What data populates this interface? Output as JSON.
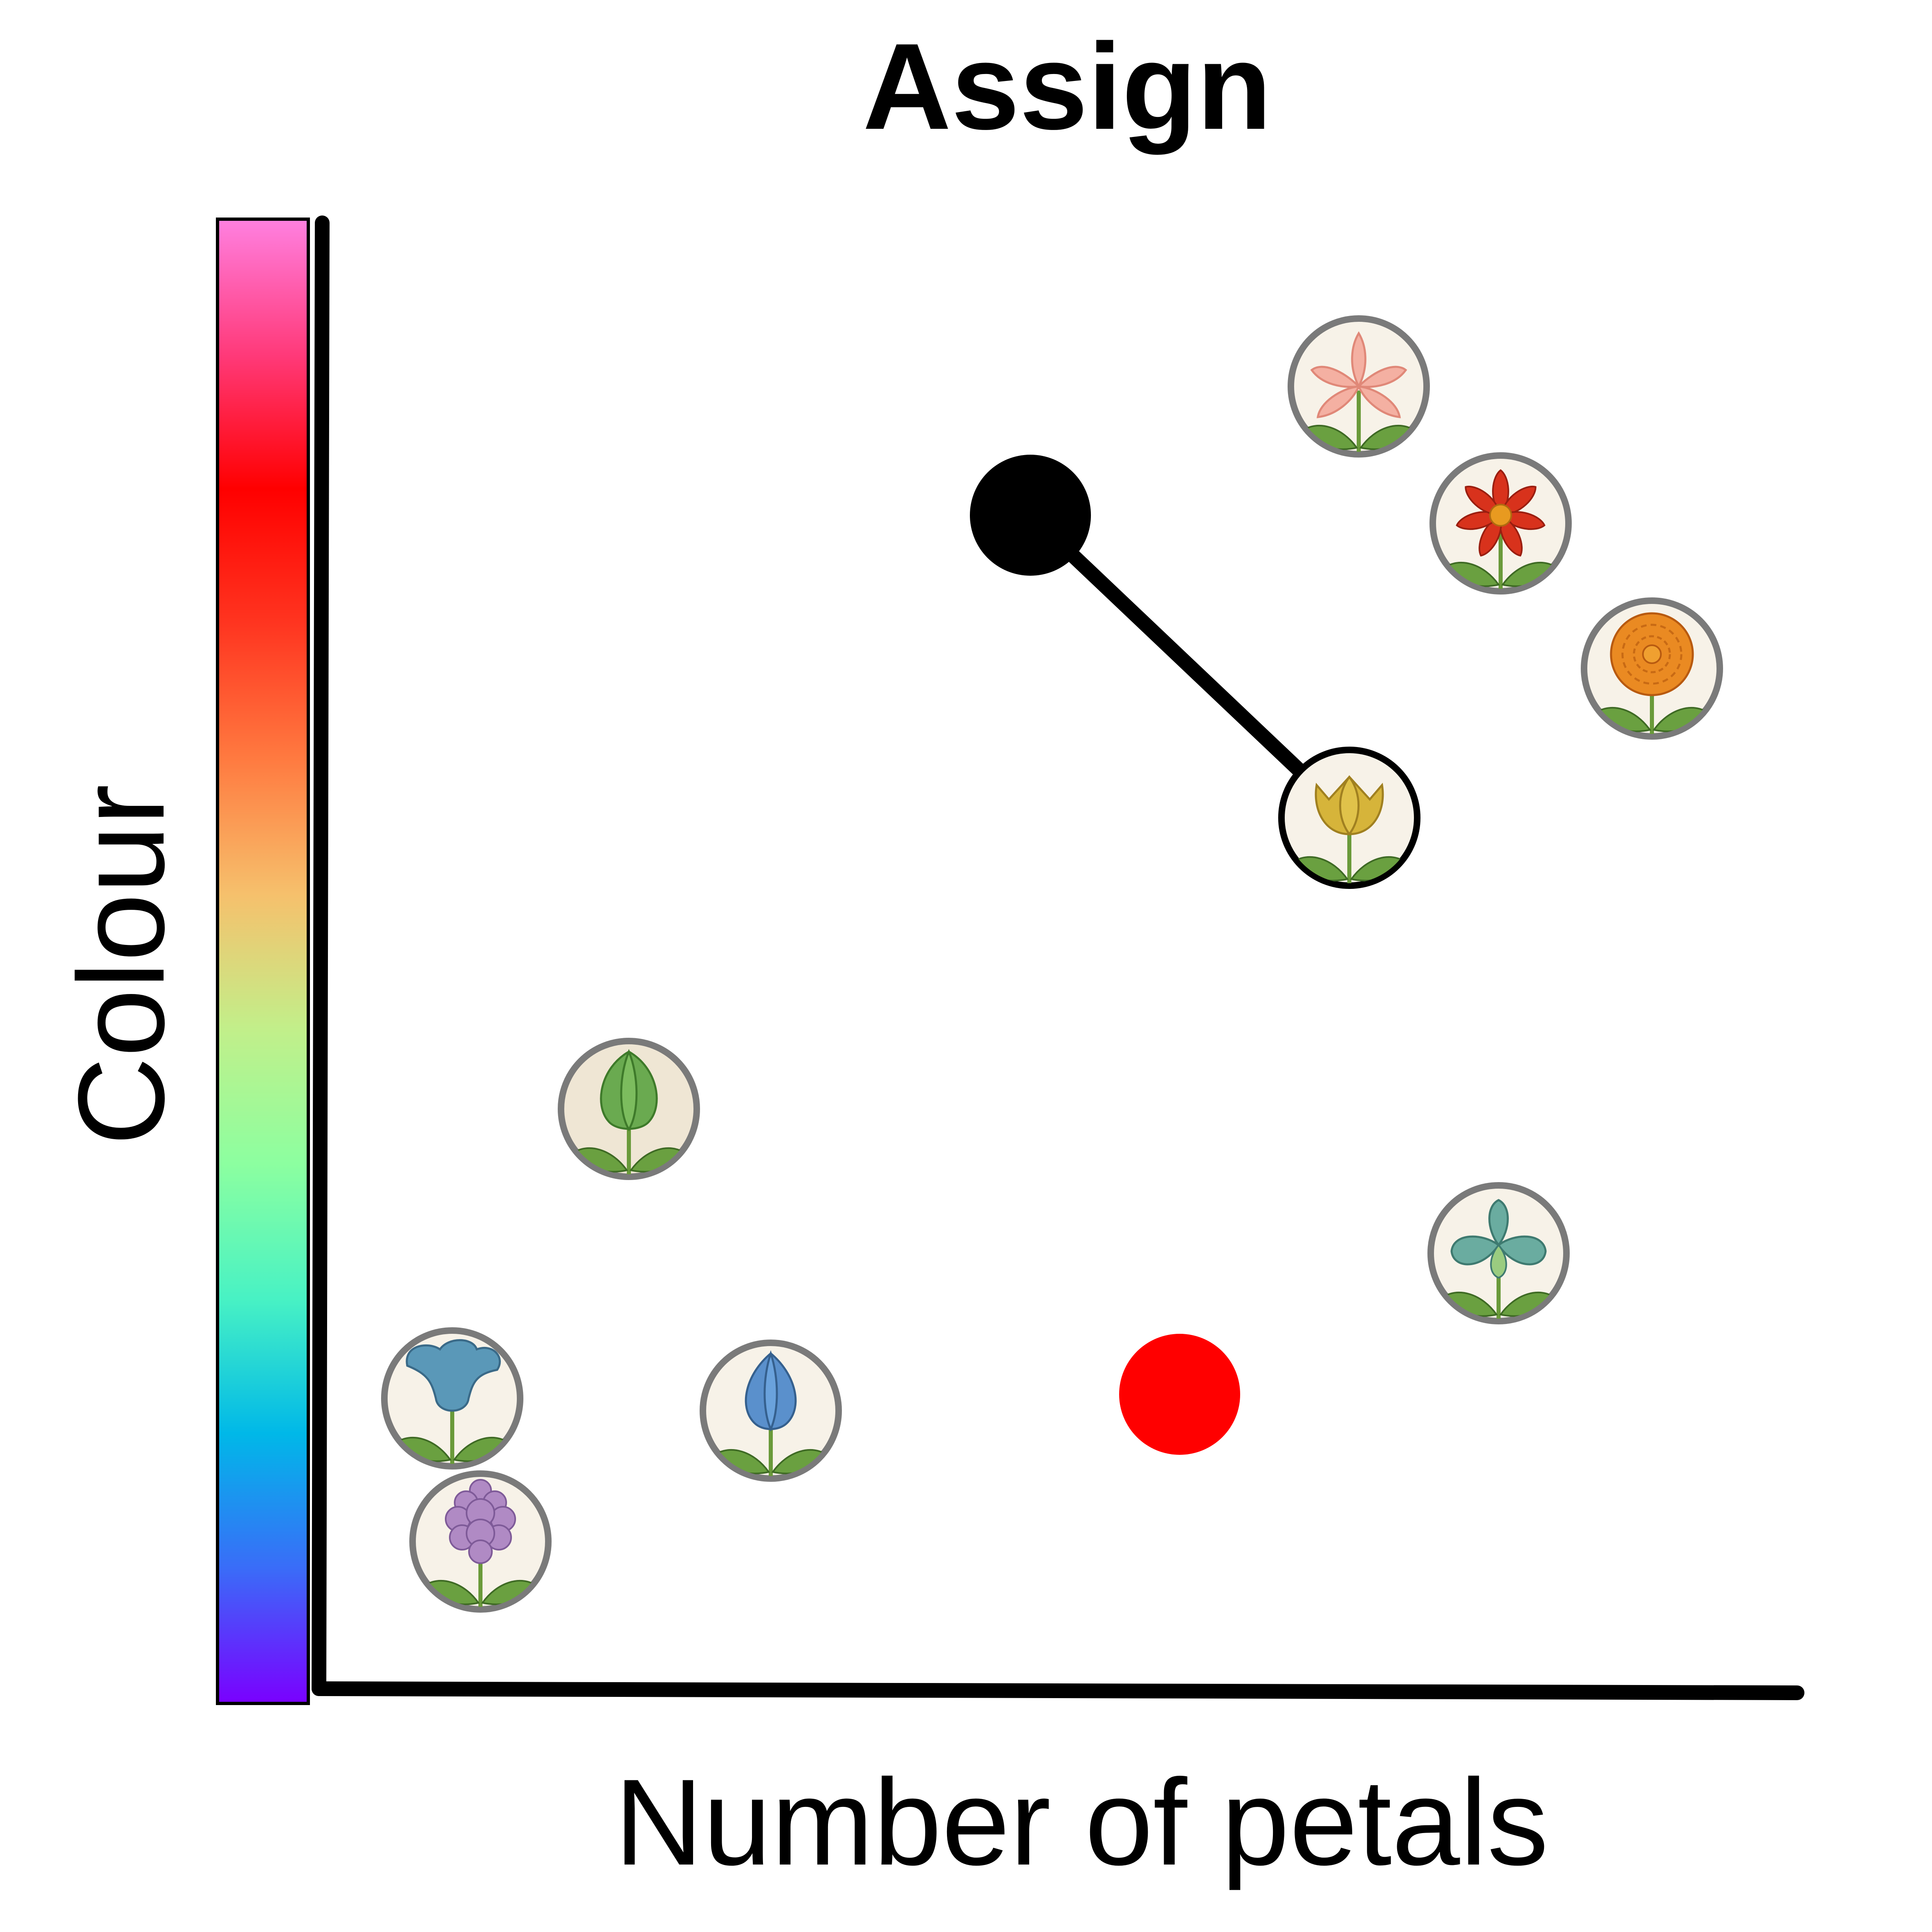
{
  "title": "Assign",
  "x_axis": {
    "label": "Number of petals"
  },
  "y_axis": {
    "label": "Colour"
  },
  "colorbar": {
    "stops": [
      "#7a00ff",
      "#3a6cf8",
      "#00b8e8",
      "#48f2c4",
      "#8cffa0",
      "#c2ef8a",
      "#f6c06c",
      "#ff7a40",
      "#ff3520",
      "#ff0000",
      "#ff3a7a",
      "#ff80e0"
    ]
  },
  "colors": {
    "axis": "#000000",
    "ring": "#7a7a7a",
    "selected_ring": "#000000",
    "centroid": "#000000",
    "second_centroid": "#ff0000"
  },
  "flowers": [
    {
      "id": "pink-lily",
      "icon": "pink-lily-icon",
      "petal_color": "#f4b0a2",
      "bg": "#f7f2e8"
    },
    {
      "id": "red-daisy",
      "icon": "red-flower-icon",
      "petal_color": "#d8321c",
      "bg": "#f7f2e8"
    },
    {
      "id": "orange-daisy",
      "icon": "orange-daisy-icon",
      "petal_color": "#ea8a22",
      "bg": "#f7f2e8"
    },
    {
      "id": "yellow-tulip",
      "icon": "yellow-tulip-icon",
      "petal_color": "#d6b43a",
      "bg": "#f7f2e8",
      "selected": true
    },
    {
      "id": "green-tulip",
      "icon": "green-tulip-icon",
      "petal_color": "#6aaa50",
      "bg": "#efe6d4"
    },
    {
      "id": "teal-iris",
      "icon": "teal-iris-icon",
      "petal_color": "#6aaca0",
      "bg": "#f7f2e8"
    },
    {
      "id": "blue-bell",
      "icon": "blue-bell-icon",
      "petal_color": "#5a98b8",
      "bg": "#f7f2e8"
    },
    {
      "id": "blue-crocus",
      "icon": "blue-crocus-icon",
      "petal_color": "#5a90cc",
      "bg": "#f7f2e8"
    },
    {
      "id": "purple-lilac",
      "icon": "purple-lilac-icon",
      "petal_color": "#b08ac4",
      "bg": "#f7f2e8"
    }
  ],
  "centroids": [
    {
      "id": "black-centroid",
      "color": "#000000",
      "assigned_to": "yellow-tulip"
    },
    {
      "id": "red-centroid",
      "color": "#ff0000"
    }
  ]
}
